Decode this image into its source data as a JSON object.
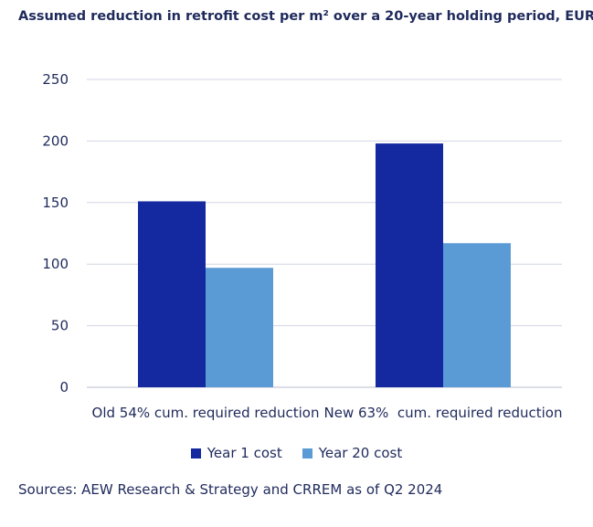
{
  "chart_data": {
    "type": "bar",
    "title": "Assumed reduction in retrofit cost per m² over a 20-year holding period, EUR",
    "categories": [
      "Old 54% cum. required reduction",
      "New 63%  cum. required reduction"
    ],
    "series": [
      {
        "name": "Year 1 cost",
        "values": [
          151,
          198
        ],
        "color": "#1428a0"
      },
      {
        "name": "Year 20 cost",
        "values": [
          97,
          117
        ],
        "color": "#5b9bd5"
      }
    ],
    "ylim": [
      0,
      250
    ],
    "yticks": [
      "0",
      "50",
      "100",
      "150",
      "200",
      "250"
    ],
    "xlabel": "",
    "ylabel": "",
    "grid": true,
    "legend_position": "bottom"
  },
  "source": "Sources: AEW Research & Strategy and CRREM as of Q2 2024"
}
